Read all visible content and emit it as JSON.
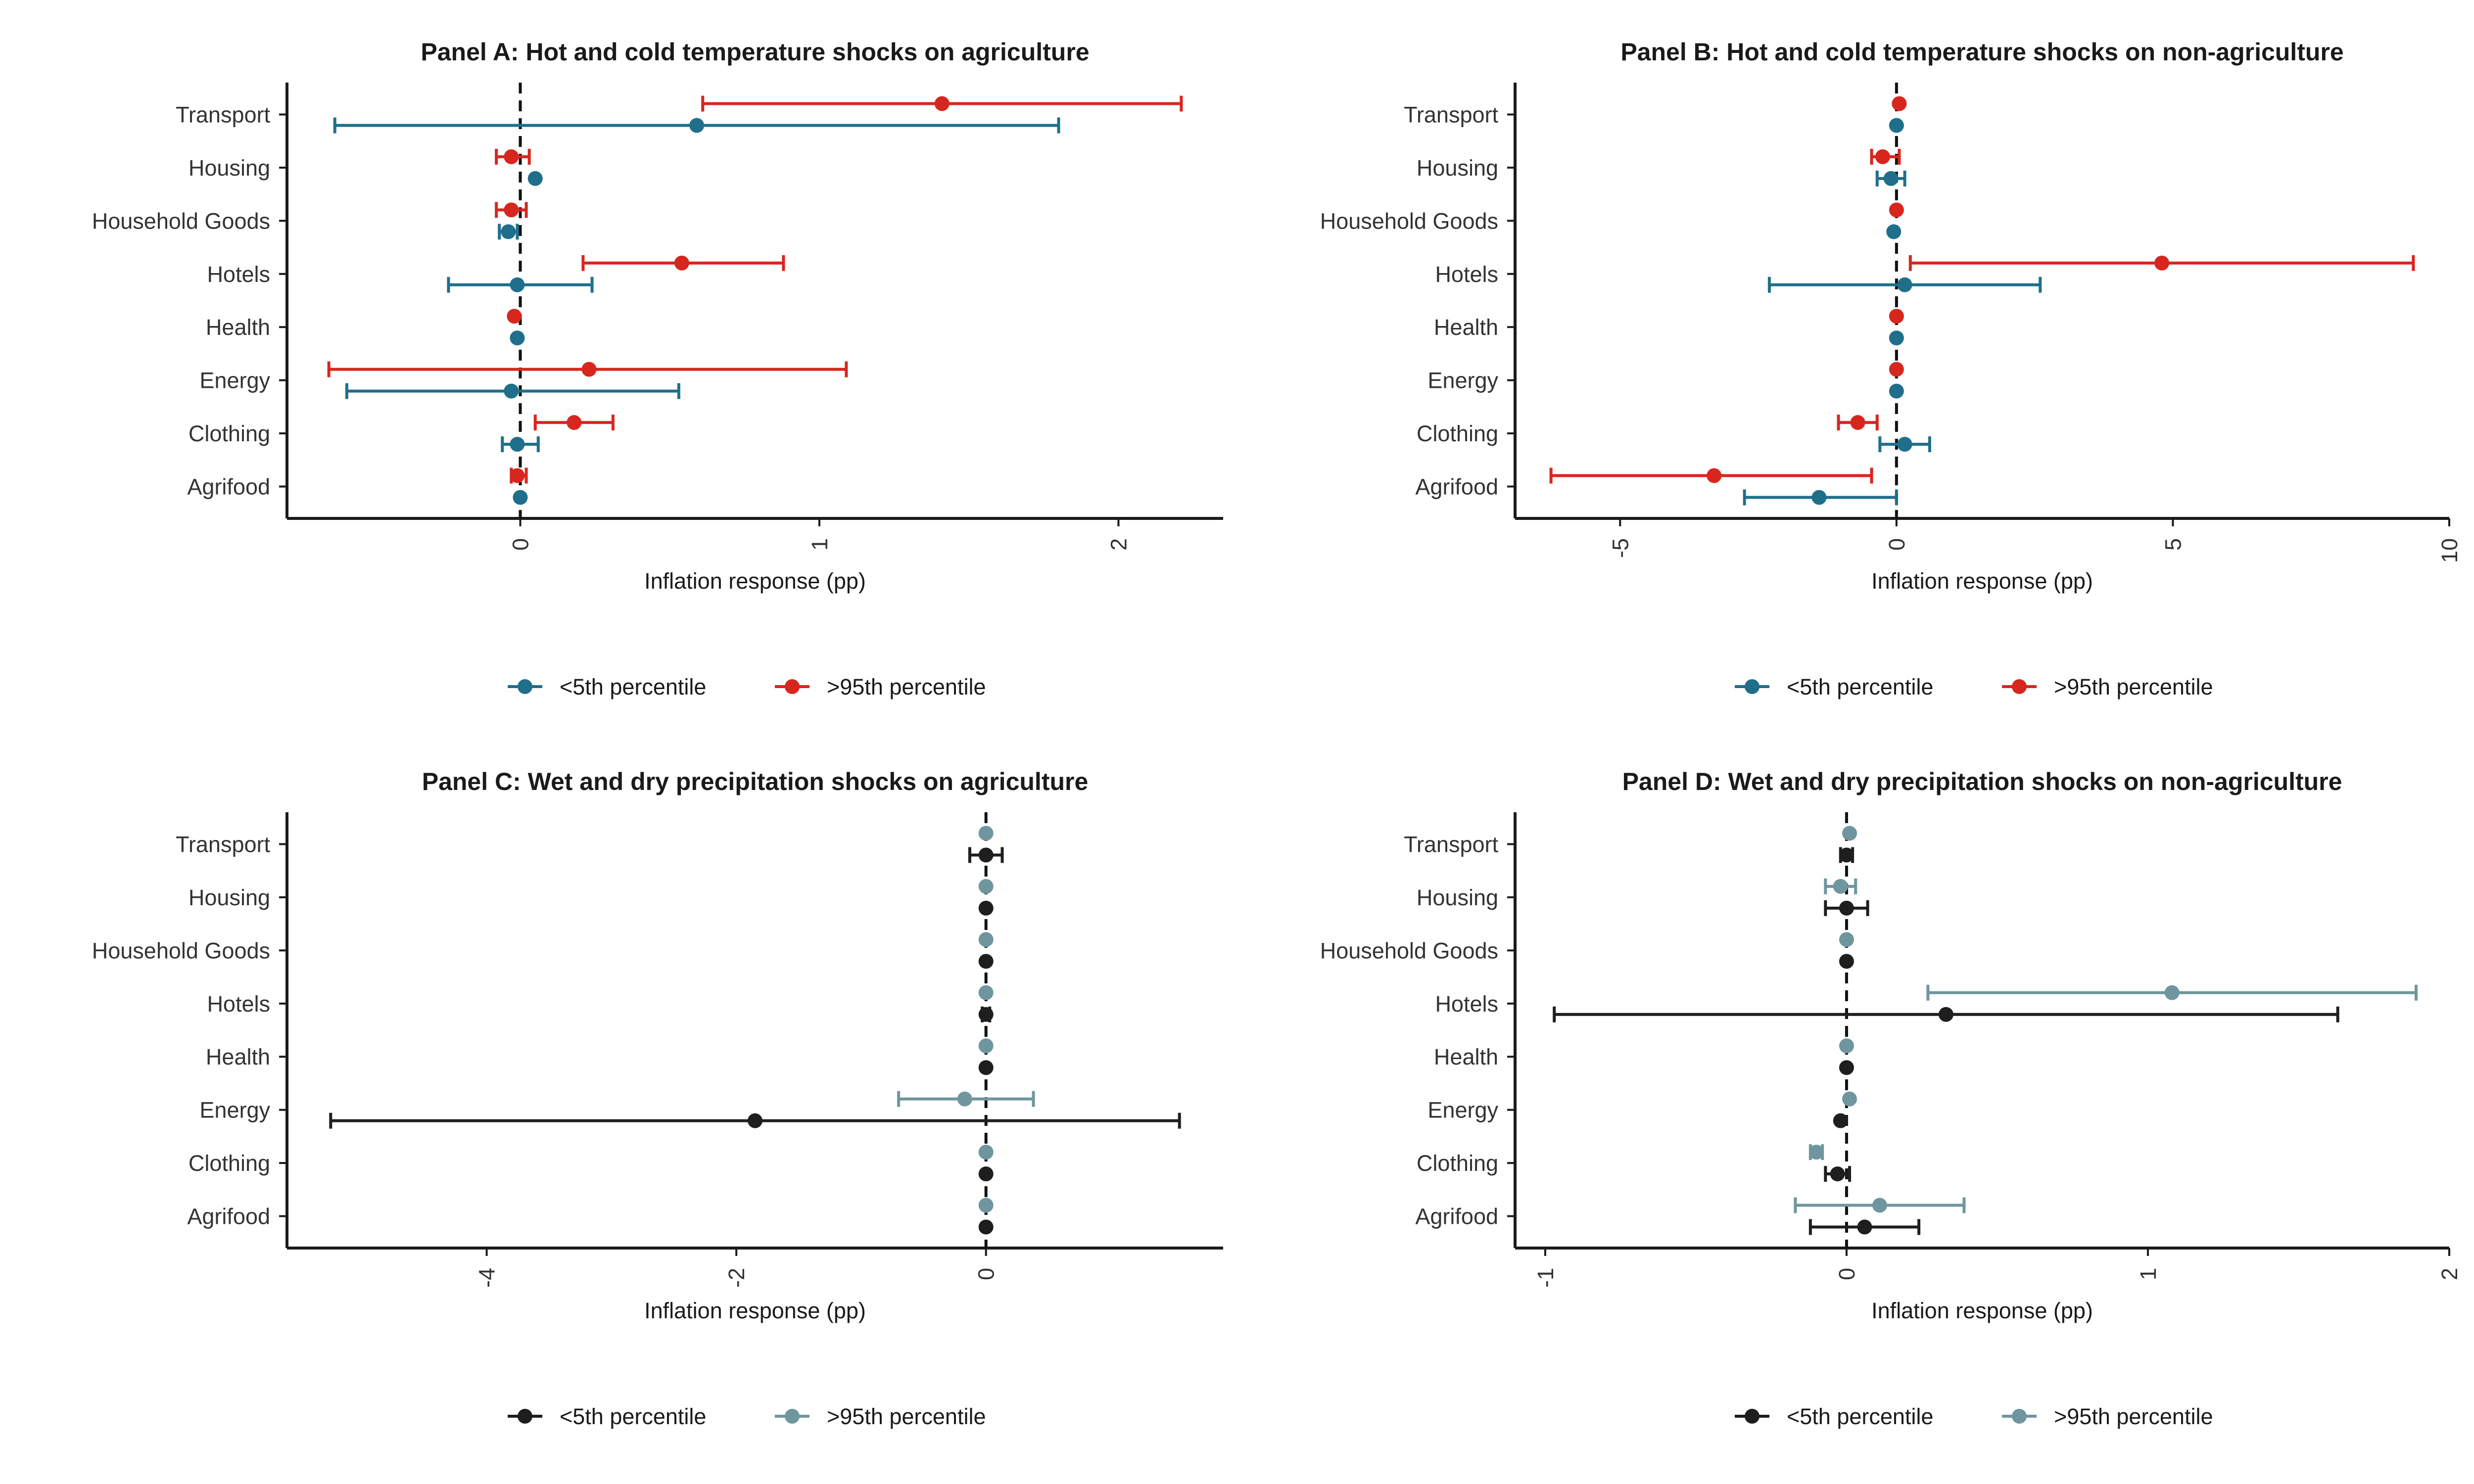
{
  "chart_data": [
    {
      "type": "scatter",
      "title": "Panel A: Hot and cold temperature shocks on agriculture",
      "xlabel": "Inflation response (pp)",
      "ylabel": "",
      "categories": [
        "Agrifood",
        "Clothing",
        "Energy",
        "Health",
        "Hotels",
        "Household Goods",
        "Housing",
        "Transport"
      ],
      "xlim": [
        -0.78,
        2.35
      ],
      "xticks": [
        "0",
        "1",
        "2"
      ],
      "zero_line": true,
      "grid": false,
      "legend_position": "bottom",
      "series": [
        {
          "name": "<5th percentile",
          "color": "#1f6f8b",
          "values": [
            0.0,
            -0.01,
            -0.03,
            -0.01,
            -0.01,
            -0.04,
            0.05,
            0.59
          ],
          "lower": [
            0.0,
            -0.06,
            -0.58,
            -0.01,
            -0.24,
            -0.07,
            0.05,
            -0.62
          ],
          "upper": [
            0.0,
            0.06,
            0.53,
            -0.01,
            0.24,
            -0.01,
            0.05,
            1.8
          ]
        },
        {
          "name": ">95th percentile",
          "color": "#d7261e",
          "values": [
            -0.01,
            0.18,
            0.23,
            -0.02,
            0.54,
            -0.03,
            -0.03,
            1.41
          ],
          "lower": [
            -0.03,
            0.05,
            -0.64,
            -0.02,
            0.21,
            -0.08,
            -0.08,
            0.61
          ],
          "upper": [
            0.02,
            0.31,
            1.09,
            -0.02,
            0.88,
            0.02,
            0.03,
            2.21
          ]
        }
      ]
    },
    {
      "type": "scatter",
      "title": "Panel B: Hot and cold temperature shocks on non-agriculture",
      "xlabel": "Inflation response (pp)",
      "ylabel": "",
      "categories": [
        "Agrifood",
        "Clothing",
        "Energy",
        "Health",
        "Hotels",
        "Household Goods",
        "Housing",
        "Transport"
      ],
      "xlim": [
        -6.9,
        10.0
      ],
      "xticks": [
        "-5",
        "0",
        "5",
        "10"
      ],
      "zero_line": true,
      "grid": false,
      "legend_position": "bottom",
      "series": [
        {
          "name": "<5th percentile",
          "color": "#1f6f8b",
          "values": [
            -1.4,
            0.15,
            0.0,
            0.0,
            0.15,
            -0.05,
            -0.1,
            0.0
          ],
          "lower": [
            -2.75,
            -0.3,
            0.0,
            0.0,
            -2.3,
            -0.05,
            -0.35,
            0.0
          ],
          "upper": [
            0.0,
            0.6,
            0.0,
            0.0,
            2.6,
            -0.05,
            0.15,
            0.0
          ]
        },
        {
          "name": ">95th percentile",
          "color": "#d7261e",
          "values": [
            -3.3,
            -0.7,
            0.0,
            0.0,
            4.8,
            0.0,
            -0.25,
            0.05
          ],
          "lower": [
            -6.25,
            -1.05,
            0.0,
            0.0,
            0.25,
            0.0,
            -0.45,
            0.05
          ],
          "upper": [
            -0.45,
            -0.35,
            0.0,
            0.0,
            9.35,
            0.0,
            0.05,
            0.05
          ]
        }
      ]
    },
    {
      "type": "scatter",
      "title": "Panel C: Wet and dry precipitation shocks on agriculture",
      "xlabel": "Inflation response (pp)",
      "ylabel": "",
      "categories": [
        "Agrifood",
        "Clothing",
        "Energy",
        "Health",
        "Hotels",
        "Household Goods",
        "Housing",
        "Transport"
      ],
      "xlim": [
        -5.6,
        1.9
      ],
      "xticks": [
        "-4",
        "-2",
        "0"
      ],
      "zero_line": true,
      "grid": false,
      "legend_position": "bottom",
      "series": [
        {
          "name": "<5th percentile",
          "color": "#1e1e1e",
          "values": [
            0.0,
            0.0,
            -1.85,
            0.0,
            0.0,
            0.0,
            0.0,
            0.0
          ],
          "lower": [
            0.0,
            0.0,
            -5.25,
            0.0,
            -0.03,
            0.0,
            0.0,
            -0.13
          ],
          "upper": [
            0.0,
            0.0,
            1.55,
            0.0,
            0.03,
            0.0,
            0.0,
            0.13
          ]
        },
        {
          "name": ">95th percentile",
          "color": "#6f969e",
          "values": [
            0.0,
            0.0,
            -0.17,
            0.0,
            0.0,
            0.0,
            0.0,
            0.0
          ],
          "lower": [
            0.0,
            0.0,
            -0.7,
            0.0,
            0.0,
            0.0,
            0.0,
            0.0
          ],
          "upper": [
            0.0,
            0.0,
            0.38,
            0.0,
            0.0,
            0.0,
            0.0,
            0.0
          ]
        }
      ]
    },
    {
      "type": "scatter",
      "title": "Panel D: Wet and dry precipitation shocks on non-agriculture",
      "xlabel": "Inflation response (pp)",
      "ylabel": "",
      "categories": [
        "Agrifood",
        "Clothing",
        "Energy",
        "Health",
        "Hotels",
        "Household Goods",
        "Housing",
        "Transport"
      ],
      "xlim": [
        -1.1,
        2.0
      ],
      "xticks": [
        "-1",
        "0",
        "1",
        "2"
      ],
      "zero_line": true,
      "grid": false,
      "legend_position": "bottom",
      "series": [
        {
          "name": "<5th percentile",
          "color": "#1e1e1e",
          "values": [
            0.06,
            -0.03,
            -0.02,
            0.0,
            0.33,
            0.0,
            0.0,
            0.0
          ],
          "lower": [
            -0.12,
            -0.07,
            -0.02,
            0.0,
            -0.97,
            0.0,
            -0.07,
            -0.02
          ],
          "upper": [
            0.24,
            0.01,
            -0.02,
            0.0,
            1.63,
            0.0,
            0.07,
            0.02
          ]
        },
        {
          "name": ">95th percentile",
          "color": "#6f969e",
          "values": [
            0.11,
            -0.1,
            0.01,
            0.0,
            1.08,
            0.0,
            -0.02,
            0.01
          ],
          "lower": [
            -0.17,
            -0.12,
            0.01,
            0.0,
            0.27,
            0.0,
            -0.07,
            0.01
          ],
          "upper": [
            0.39,
            -0.08,
            0.01,
            0.0,
            1.89,
            0.0,
            0.03,
            0.01
          ]
        }
      ]
    }
  ]
}
